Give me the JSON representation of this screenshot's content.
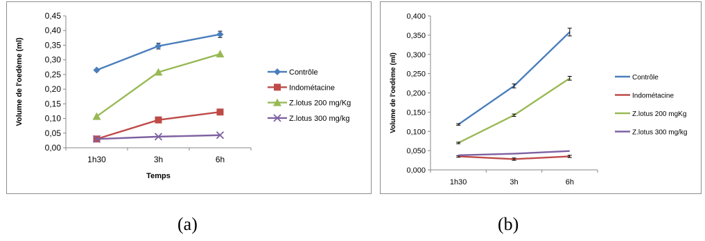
{
  "chart_data": [
    {
      "panel": "a",
      "type": "line",
      "title": "",
      "xlabel": "Temps",
      "ylabel": "Volume de l'oedème (ml)",
      "categories": [
        "1h30",
        "3h",
        "6h"
      ],
      "ylim": [
        0,
        0.45
      ],
      "yticks": [
        "0,00",
        "0,05",
        "0,10",
        "0,15",
        "0,20",
        "0,25",
        "0,30",
        "0,35",
        "0,40",
        "0,45"
      ],
      "grid": false,
      "legend_position": "right",
      "series": [
        {
          "name": "Contrôle",
          "values": [
            0.265,
            0.347,
            0.387
          ],
          "errors": [
            0.004,
            0.01,
            0.011
          ],
          "color": "#4a7ebb",
          "marker": "diamond"
        },
        {
          "name": "Indométacine",
          "values": [
            0.03,
            0.095,
            0.122
          ],
          "errors": [
            0,
            0,
            0
          ],
          "color": "#be4b48",
          "marker": "square"
        },
        {
          "name": "Z.lotus 200 mg/Kg",
          "values": [
            0.107,
            0.258,
            0.32
          ],
          "errors": [
            0,
            0,
            0
          ],
          "color": "#98b954",
          "marker": "triangle"
        },
        {
          "name": "Z.lotus 300  mg/kg",
          "values": [
            0.03,
            0.038,
            0.043
          ],
          "errors": [
            0,
            0,
            0
          ],
          "color": "#7d60a0",
          "marker": "x"
        }
      ]
    },
    {
      "panel": "b",
      "type": "line",
      "title": "",
      "xlabel": "",
      "ylabel": "Volume de l'oedème (ml)",
      "categories": [
        "1h30",
        "3h",
        "6h"
      ],
      "ylim": [
        0,
        0.4
      ],
      "yticks": [
        "0,000",
        "0,050",
        "0,100",
        "0,150",
        "0,200",
        "0,250",
        "0,300",
        "0,350",
        "0,400"
      ],
      "grid": false,
      "legend_position": "right",
      "series": [
        {
          "name": "Contrôle",
          "values": [
            0.118,
            0.218,
            0.358
          ],
          "errors": [
            0.002,
            0.005,
            0.01
          ],
          "color": "#4a7ebb",
          "marker": "none"
        },
        {
          "name": "Indométacine",
          "values": [
            0.035,
            0.028,
            0.035
          ],
          "errors": [
            0.002,
            0.003,
            0.003
          ],
          "color": "#be4b48",
          "marker": "none"
        },
        {
          "name": "Z.lotus 200 mgKg",
          "values": [
            0.07,
            0.142,
            0.238
          ],
          "errors": [
            0.002,
            0.003,
            0.005
          ],
          "color": "#98b954",
          "marker": "none"
        },
        {
          "name": "Z.lotus 300 mg/kg",
          "values": [
            0.038,
            0.042,
            0.049
          ],
          "errors": [
            0,
            0,
            0
          ],
          "color": "#7d60a0",
          "marker": "none"
        }
      ]
    }
  ],
  "captions": {
    "a": "(a)",
    "b": "(b)"
  }
}
